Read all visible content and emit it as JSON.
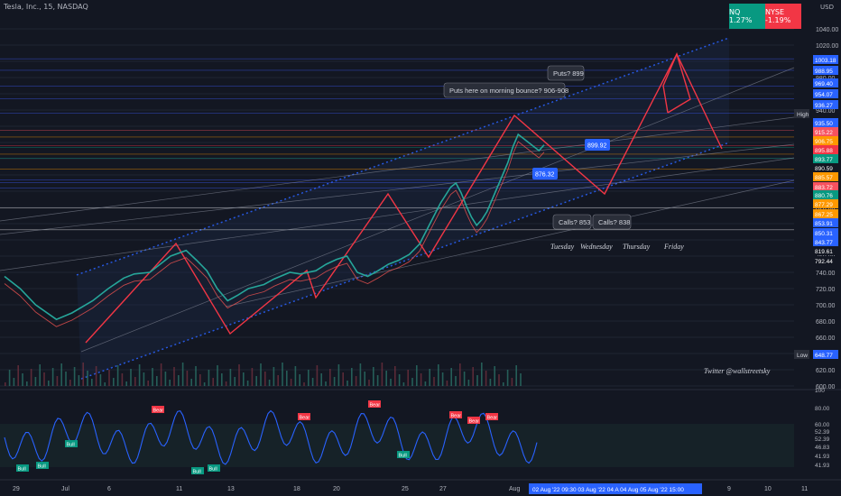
{
  "header": {
    "title": "Tesla, Inc., 15, NASDAQ",
    "currency": "USD"
  },
  "indices": [
    {
      "label": "NQ 1.27%",
      "color": "#089981"
    },
    {
      "label": "NYSE -1.19%",
      "color": "#f23645"
    }
  ],
  "chart_data": {
    "type": "line",
    "symbol": "Tesla, Inc., 15, NASDAQ",
    "price_axis_ticks": [
      1040,
      1020,
      1000,
      980,
      960,
      940,
      920,
      900,
      880,
      860,
      840,
      820,
      800,
      780,
      760,
      740,
      720,
      700,
      680,
      660,
      640,
      620,
      600
    ],
    "price_labels": [
      {
        "value": "1003.18",
        "color": "#2962ff"
      },
      {
        "value": "988.95",
        "color": "#2962ff"
      },
      {
        "value": "969.40",
        "color": "#2962ff"
      },
      {
        "value": "954.07",
        "color": "#2962ff"
      },
      {
        "value": "936.27",
        "color": "#2962ff"
      },
      {
        "value": "935.50",
        "color": "#2962ff"
      },
      {
        "value": "915.22",
        "color": "#f7525f"
      },
      {
        "value": "906.75",
        "color": "#ff9800"
      },
      {
        "value": "895.88",
        "color": "#f23645"
      },
      {
        "value": "893.77",
        "color": "#089981"
      },
      {
        "value": "890.59",
        "color": "#131722"
      },
      {
        "value": "885.57",
        "color": "#ff9800"
      },
      {
        "value": "883.72",
        "color": "#f7525f"
      },
      {
        "value": "880.76",
        "color": "#089981"
      },
      {
        "value": "877.29",
        "color": "#ff9800"
      },
      {
        "value": "867.25",
        "color": "#ff9800"
      },
      {
        "value": "853.91",
        "color": "#2962ff"
      },
      {
        "value": "850.31",
        "color": "#2962ff"
      },
      {
        "value": "843.77",
        "color": "#2962ff"
      },
      {
        "value": "819.61",
        "color": "#131722"
      },
      {
        "value": "792.44",
        "color": "#131722"
      },
      {
        "value": "648.77",
        "color": "#2962ff"
      }
    ],
    "high_label": "High",
    "low_label": "Low",
    "x_ticks": [
      "29",
      "Jul",
      "6",
      "11",
      "13",
      "18",
      "20",
      "25",
      "27",
      "Aug",
      "9",
      "10",
      "11"
    ],
    "x_range_label": "02 Aug '22  09:30  03 Aug '22  04 A  04 Aug  05 Aug '22  15:00",
    "annotations": {
      "puts_899": "Puts? 899",
      "puts_morning": "Puts here on morning bounce? 906-908",
      "price_899": "899.92",
      "price_876": "876.32",
      "calls_853": "Calls? 853",
      "calls_838": "Calls? 838",
      "days": [
        "Tuesday",
        "Wednesday",
        "Thursday",
        "Friday"
      ],
      "watermark": "Twitter @wallstreetsky"
    },
    "price_series": [
      [
        0,
        735
      ],
      [
        0.03,
        720
      ],
      [
        0.06,
        700
      ],
      [
        0.1,
        682
      ],
      [
        0.13,
        690
      ],
      [
        0.17,
        705
      ],
      [
        0.2,
        720
      ],
      [
        0.23,
        733
      ],
      [
        0.25,
        738
      ],
      [
        0.28,
        740
      ],
      [
        0.3,
        750
      ],
      [
        0.32,
        760
      ],
      [
        0.35,
        767
      ],
      [
        0.37,
        755
      ],
      [
        0.39,
        742
      ],
      [
        0.41,
        720
      ],
      [
        0.43,
        705
      ],
      [
        0.45,
        712
      ],
      [
        0.47,
        720
      ],
      [
        0.5,
        725
      ],
      [
        0.52,
        732
      ],
      [
        0.55,
        740
      ],
      [
        0.57,
        738
      ],
      [
        0.6,
        742
      ],
      [
        0.62,
        750
      ],
      [
        0.64,
        756
      ],
      [
        0.66,
        760
      ],
      [
        0.68,
        740
      ],
      [
        0.7,
        735
      ],
      [
        0.72,
        742
      ],
      [
        0.74,
        750
      ],
      [
        0.76,
        755
      ],
      [
        0.78,
        762
      ],
      [
        0.8,
        775
      ],
      [
        0.82,
        800
      ],
      [
        0.84,
        825
      ],
      [
        0.86,
        845
      ],
      [
        0.87,
        850
      ],
      [
        0.88,
        838
      ],
      [
        0.89,
        822
      ],
      [
        0.9,
        808
      ],
      [
        0.91,
        798
      ],
      [
        0.92,
        805
      ],
      [
        0.93,
        815
      ],
      [
        0.94,
        830
      ],
      [
        0.95,
        845
      ],
      [
        0.96,
        860
      ],
      [
        0.97,
        875
      ],
      [
        0.98,
        895
      ],
      [
        0.99,
        910
      ],
      [
        1.0,
        905
      ],
      [
        1.01,
        900
      ],
      [
        1.02,
        895
      ],
      [
        1.03,
        890
      ],
      [
        1.04,
        897
      ]
    ],
    "oscillator": {
      "axis_ticks": [
        "100",
        "80.00",
        "60.00",
        "52.39",
        "52.39",
        "46.83",
        "41.93",
        "41.93"
      ],
      "bull_label": "Bull",
      "bear_label": "Bear"
    }
  }
}
